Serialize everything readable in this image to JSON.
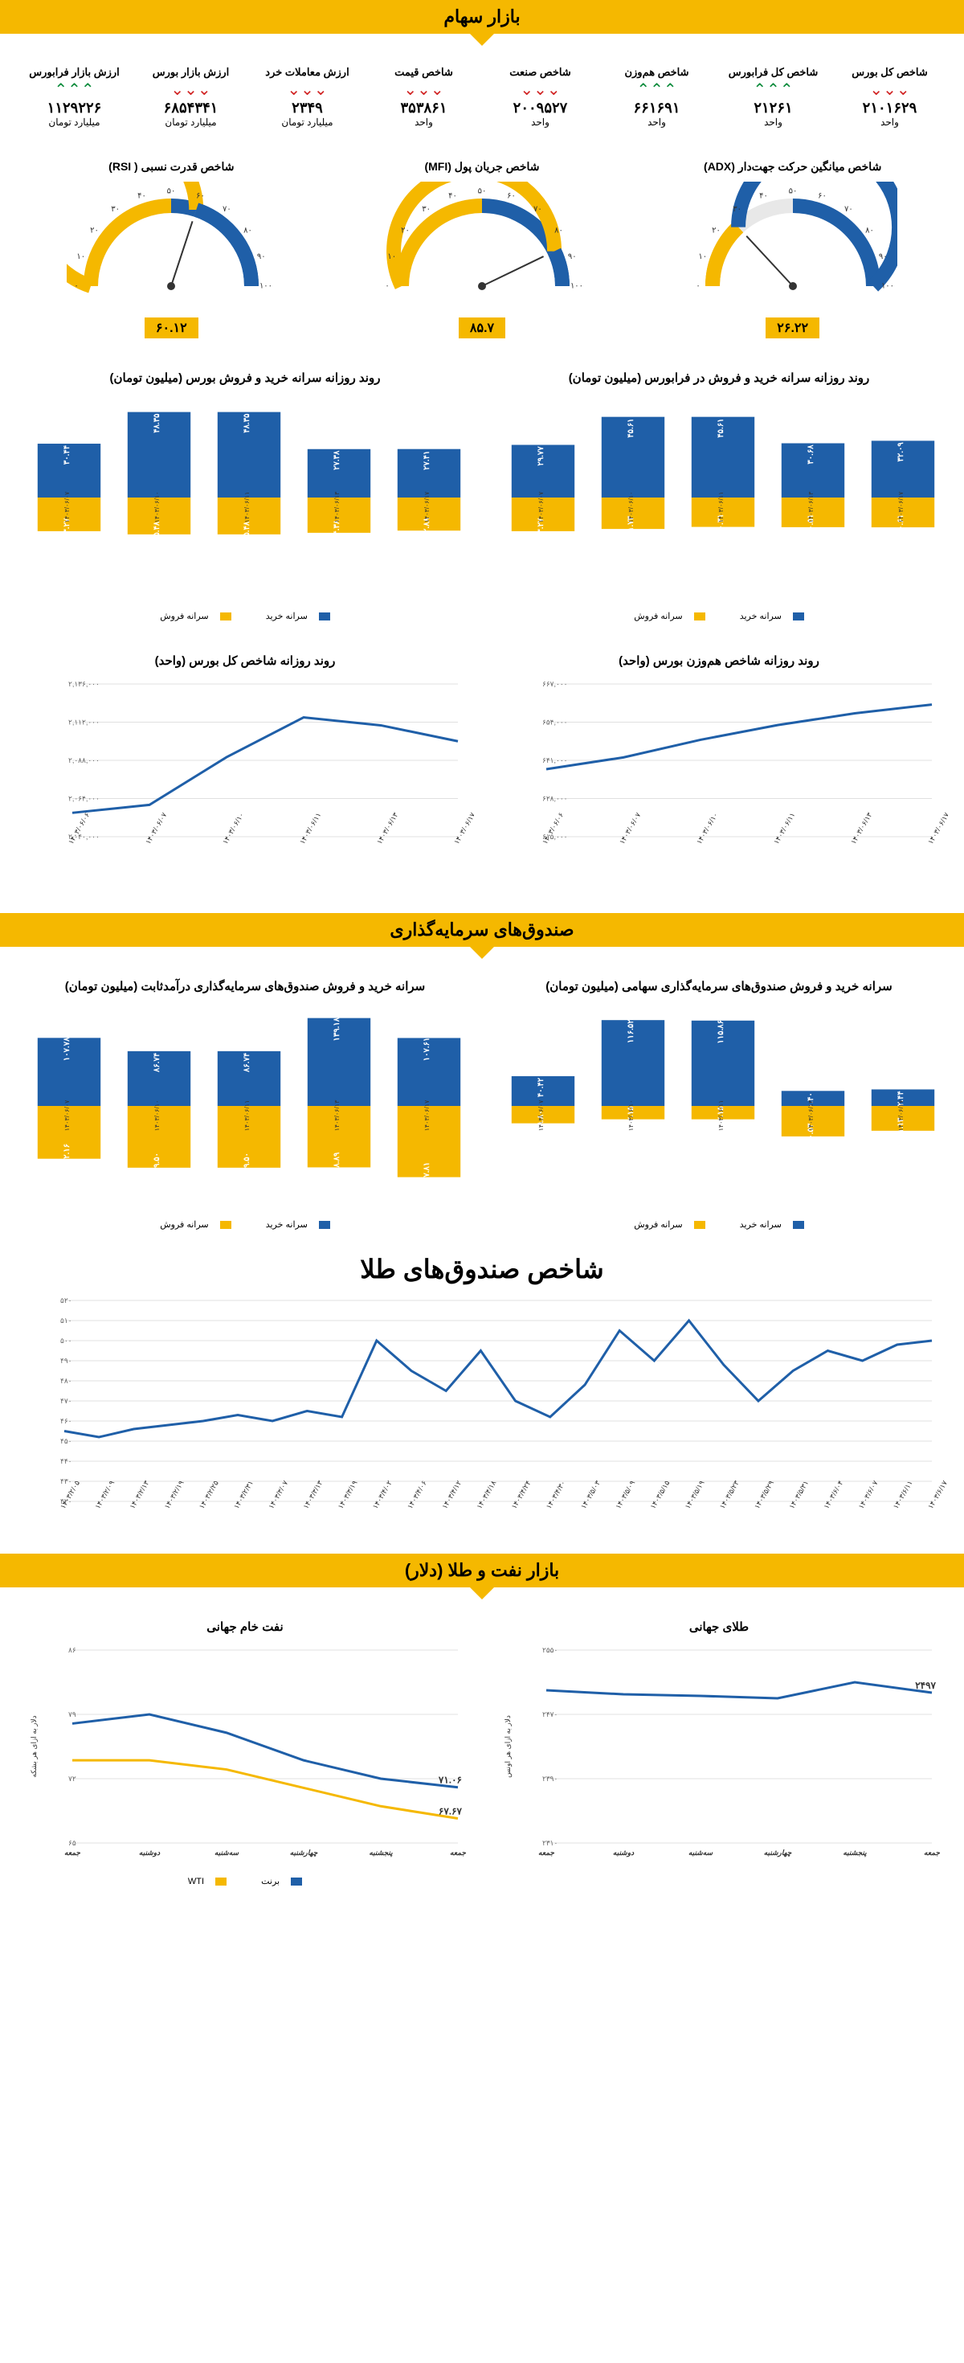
{
  "colors": {
    "yellow": "#f5b800",
    "blue": "#1f5fa8",
    "blue_line": "#1f5fa8",
    "grid": "#e0e0e0",
    "green": "#0a8a3a",
    "red": "#d02020",
    "track": "#e8e8e8"
  },
  "section1": {
    "title": "بازار سهام",
    "kpis": [
      {
        "label": "شاخص کل بورس",
        "value": "۲۱۰۱۶۲۹",
        "unit": "واحد",
        "dir": "down"
      },
      {
        "label": "شاخص کل فرابورس",
        "value": "۲۱۲۶۱",
        "unit": "واحد",
        "dir": "up"
      },
      {
        "label": "شاخص هم‌وزن",
        "value": "۶۶۱۶۹۱",
        "unit": "واحد",
        "dir": "up"
      },
      {
        "label": "شاخص صنعت",
        "value": "۲۰۰۹۵۲۷",
        "unit": "واحد",
        "dir": "down"
      },
      {
        "label": "شاخص قیمت",
        "value": "۳۵۳۸۶۱",
        "unit": "واحد",
        "dir": "down"
      },
      {
        "label": "ارزش معاملات خرد",
        "value": "۲۳۴۹",
        "unit": "میلیارد تومان",
        "dir": "down"
      },
      {
        "label": "ارزش بازار بورس",
        "value": "۶۸۵۴۳۴۱",
        "unit": "میلیارد تومان",
        "dir": "down"
      },
      {
        "label": "ارزش بازار فرابورس",
        "value": "۱۱۲۹۲۲۶",
        "unit": "میلیارد تومان",
        "dir": "up"
      }
    ],
    "gauges": [
      {
        "title": "شاخص میانگین حرکت جهت‌دار (ADX)",
        "value": 26.22,
        "display": "۲۶.۲۲"
      },
      {
        "title": "شاخص جریان پول (MFI)",
        "value": 85.7,
        "display": "۸۵.۷"
      },
      {
        "title": "شاخص قدرت نسبی ( RSI)",
        "value": 60.12,
        "display": "۶۰.۱۲"
      }
    ],
    "bar_pair_titles": {
      "right": "روند روزانه سرانه خرید و فروش در فرابورس (میلیون تومان)",
      "left": "روند روزانه سرانه خرید و فروش بورس (میلیون تومان)"
    },
    "dates": [
      "۱۴۰۳/۰۶/۰۷",
      "۱۴۰۳/۰۶/۱۰",
      "۱۴۰۳/۰۶/۱۱",
      "۱۴۰۳/۰۶/۱۳",
      "۱۴۰۳/۰۶/۱۷"
    ],
    "faraboors": {
      "buy": [
        29.77,
        45.61,
        45.61,
        30.68,
        32.09
      ],
      "sell": [
        23.27,
        21.73,
        20.31,
        20.51,
        20.61
      ],
      "buy_lbl": [
        "۲۹.۷۷",
        "۴۵.۶۱",
        "۴۵.۶۱",
        "۳۰.۶۸",
        "۳۲.۰۹"
      ],
      "sell_lbl": [
        "۲۳.۲۷",
        "۲۱.۷۳",
        "۲۰.۳۱",
        "۲۰.۵۱",
        "۲۰.۶۱"
      ]
    },
    "boors": {
      "buy": [
        30.44,
        48.35,
        48.35,
        27.38,
        27.41
      ],
      "sell": [
        23.27,
        25.48,
        25.48,
        24.38,
        22.88
      ],
      "buy_lbl": [
        "۳۰.۴۴",
        "۴۸.۳۵",
        "۴۸.۳۵",
        "۲۷.۳۸",
        "۲۷.۴۱"
      ],
      "sell_lbl": [
        "۲۳.۲۷",
        "۲۵.۴۸",
        "۲۵.۴۸",
        "۲۴.۳۸",
        "۲۲.۸۸"
      ]
    },
    "legend": {
      "buy": "سرانه خرید",
      "sell": "سرانه فروش"
    },
    "line_titles": {
      "right": "روند روزانه شاخص هم‌وزن بورس (واحد)",
      "left": "روند روزانه شاخص کل بورس (واحد)"
    },
    "line_dates": [
      "۱۴۰۳/۰۶/۰۶",
      "۱۴۰۳/۰۶/۰۷",
      "۱۴۰۳/۰۶/۱۰",
      "۱۴۰۳/۰۶/۱۱",
      "۱۴۰۳/۰۶/۱۳",
      "۱۴۰۳/۰۶/۱۷"
    ],
    "hamvazn": {
      "yticks": [
        "۶۱۵,۰۰۰",
        "۶۲۸,۰۰۰",
        "۶۴۱,۰۰۰",
        "۶۵۴,۰۰۰",
        "۶۶۷,۰۰۰"
      ],
      "ymin": 615000,
      "ymax": 667000,
      "values": [
        638000,
        642000,
        648000,
        653000,
        657000,
        660000
      ]
    },
    "total": {
      "yticks": [
        "۲,۰۴۰,۰۰۰",
        "۲,۰۶۴,۰۰۰",
        "۲,۰۸۸,۰۰۰",
        "۲,۱۱۲,۰۰۰",
        "۲,۱۳۶,۰۰۰"
      ],
      "ymin": 2040000,
      "ymax": 2136000,
      "values": [
        2055000,
        2060000,
        2090000,
        2115000,
        2110000,
        2100000
      ]
    }
  },
  "section2": {
    "title": "صندوق‌های سرمایه‌گذاری",
    "bar_titles": {
      "right": "سرانه خرید و فروش صندوق‌های سرمایه‌گذاری سهامی (میلیون تومان)",
      "left": "سرانه خرید و فروش صندوق‌های سرمایه‌گذاری درآمدثابت (میلیون تومان)"
    },
    "dates": [
      "۱۴۰۳/۰۶/۰۷",
      "۱۴۰۳/۰۶/۱۰",
      "۱۴۰۳/۰۶/۱۱",
      "۱۴۰۳/۰۶/۱۳",
      "۱۴۰۳/۰۶/۱۷"
    ],
    "sahami": {
      "buy": [
        40.42,
        116.52,
        115.86,
        20.4,
        22.44
      ],
      "sell": [
        28.8,
        22.15,
        22.15,
        50.53,
        41.13
      ],
      "buy_lbl": [
        "۴۰.۴۲",
        "۱۱۶.۵۲",
        "۱۱۵.۸۶",
        "۲۰.۴۰",
        "۲۲.۴۴"
      ],
      "sell_lbl": [
        "۲۸.۸۰",
        "۲۲.۱۵",
        "۲۲.۱۵",
        "۵۰.۵۳",
        "۴۱.۱۳"
      ]
    },
    "sabet": {
      "buy": [
        107.78,
        86.74,
        86.74,
        139.18,
        107.61
      ],
      "sell": [
        102.16,
        119.5,
        119.5,
        118.89,
        137.81
      ],
      "buy_lbl": [
        "۱۰۷.۷۸",
        "۸۶.۷۴",
        "۸۶.۷۴",
        "۱۳۹.۱۸",
        "۱۰۷.۶۱"
      ],
      "sell_lbl": [
        "۱۰۲.۱۶",
        "۱۱۹.۵۰",
        "۱۱۹.۵۰",
        "۱۱۸.۸۹",
        "۱۳۷.۸۱"
      ]
    },
    "gold_title": "شاخص صندوق‌های طلا",
    "gold": {
      "yticks": [
        "۴۲۰",
        "۴۳۰",
        "۴۴۰",
        "۴۵۰",
        "۴۶۰",
        "۴۷۰",
        "۴۸۰",
        "۴۹۰",
        "۵۰۰",
        "۵۱۰",
        "۵۲۰"
      ],
      "ymin": 420,
      "ymax": 520,
      "dates": [
        "۱۴۰۳/۲/۰۵",
        "۱۴۰۳/۲/۰۹",
        "۱۴۰۳/۲/۱۳",
        "۱۴۰۳/۲/۱۹",
        "۱۴۰۳/۲/۲۵",
        "۱۴۰۳/۲/۳۱",
        "۱۴۰۳/۳/۰۷",
        "۱۴۰۳/۳/۱۳",
        "۱۴۰۳/۳/۱۹",
        "۱۴۰۳/۴/۰۲",
        "۱۴۰۳/۴/۰۶",
        "۱۴۰۳/۴/۱۲",
        "۱۴۰۳/۴/۱۸",
        "۱۴۰۳/۴/۲۴",
        "۱۴۰۳/۴/۳۰",
        "۱۴۰۳/۵/۰۳",
        "۱۴۰۳/۵/۰۹",
        "۱۴۰۳/۵/۱۵",
        "۱۴۰۳/۵/۱۹",
        "۱۴۰۳/۵/۲۳",
        "۱۴۰۳/۵/۲۹",
        "۱۴۰۳/۵/۳۱",
        "۱۴۰۳/۶/۰۴",
        "۱۴۰۳/۶/۰۷",
        "۱۴۰۳/۶/۱۱",
        "۱۴۰۳/۶/۱۷"
      ],
      "values": [
        455,
        452,
        456,
        458,
        460,
        463,
        460,
        465,
        462,
        500,
        485,
        475,
        495,
        470,
        462,
        478,
        505,
        490,
        510,
        488,
        470,
        485,
        495,
        490,
        498,
        500
      ]
    }
  },
  "section3": {
    "title": "بازار نفت و طلا (دلار)",
    "gold_world": {
      "title": "طلای جهانی",
      "ylabel": "دلار به ازای هر اونس",
      "yticks": [
        "۲۳۱۰",
        "۲۳۹۰",
        "۲۴۷۰",
        "۲۵۵۰"
      ],
      "ymin": 2310,
      "ymax": 2550,
      "last_label": "۲۴۹۷",
      "values": [
        2500,
        2495,
        2493,
        2490,
        2510,
        2497
      ]
    },
    "oil": {
      "title": "نفت خام جهانی",
      "ylabel": "دلار به ازای هر بشکه",
      "yticks": [
        "۶۵",
        "۷۲",
        "۷۹",
        "۸۶"
      ],
      "ymin": 65,
      "ymax": 86,
      "brent_label": "برنت",
      "wti_label": "WTI",
      "brent": [
        78,
        79,
        77,
        74,
        72,
        71.06
      ],
      "brent_last": "۷۱.۰۶",
      "wti": [
        74,
        74,
        73,
        71,
        69,
        67.67
      ],
      "wti_last": "۶۷.۶۷"
    },
    "days": [
      "جمعه",
      "دوشنبه",
      "سه‌شنبه",
      "چهارشنبه",
      "پنجشنبه",
      "جمعه"
    ]
  }
}
